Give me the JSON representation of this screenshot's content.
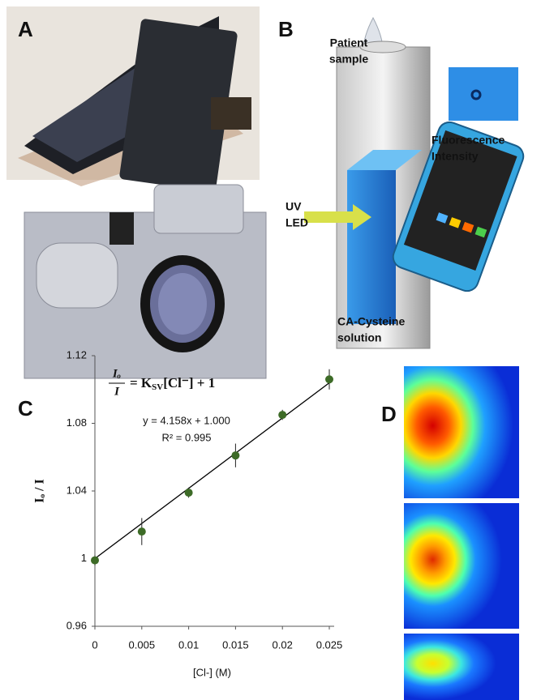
{
  "panel_labels": [
    "A",
    "B",
    "C",
    "D"
  ],
  "diagram": {
    "patient_sample": [
      "Patient",
      "sample"
    ],
    "fluorescence": [
      "Fluorescence",
      "Intensity"
    ],
    "uv_led": [
      "UV",
      "LED"
    ],
    "solution": [
      "CA-Cysteine",
      "solution"
    ]
  },
  "chart_data": {
    "type": "scatter",
    "x": [
      0,
      0.005,
      0.01,
      0.015,
      0.02,
      0.025
    ],
    "series": [
      {
        "values": [
          0.999,
          1.016,
          1.039,
          1.061,
          1.085,
          1.106
        ],
        "errors": [
          0.003,
          0.008,
          0.003,
          0.007,
          0.003,
          0.006
        ],
        "color": "#3d6b27"
      }
    ],
    "xlim": [
      0,
      0.025
    ],
    "ylim": [
      0.96,
      1.12
    ],
    "xticks": [
      0,
      0.005,
      0.01,
      0.015,
      0.02,
      0.025
    ],
    "yticks": [
      0.96,
      1,
      1.04,
      1.08,
      1.12
    ],
    "xlabel": "[Cl-] (M)",
    "ylabel": "Iₒ / I",
    "trendline": {
      "slope": 4.158,
      "intercept": 1.0,
      "label": "y = 4.158x + 1.000",
      "r2_label": "R² = 0.995"
    },
    "equation": {
      "numerator": "Iₒ",
      "denominator": "I",
      "rhs": "= K",
      "rhs_sub": "SV",
      "rhs_tail": "[Cl⁻] + 1"
    }
  }
}
